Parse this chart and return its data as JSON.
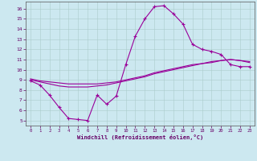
{
  "xlabel": "Windchill (Refroidissement éolien,°C)",
  "background_color": "#cce8f0",
  "grid_color": "#aacccc",
  "line_color": "#990099",
  "xlim": [
    -0.5,
    23.5
  ],
  "ylim": [
    4.5,
    16.7
  ],
  "xticks": [
    0,
    1,
    2,
    3,
    4,
    5,
    6,
    7,
    8,
    9,
    10,
    11,
    12,
    13,
    14,
    15,
    16,
    17,
    18,
    19,
    20,
    21,
    22,
    23
  ],
  "yticks": [
    5,
    6,
    7,
    8,
    9,
    10,
    11,
    12,
    13,
    14,
    15,
    16
  ],
  "line1_x": [
    0,
    1,
    2,
    3,
    4,
    5,
    6,
    7,
    8,
    9,
    10,
    11,
    12,
    13,
    14,
    15,
    16,
    17,
    18,
    19,
    20,
    21,
    22,
    23
  ],
  "line1_y": [
    8.9,
    8.5,
    7.5,
    6.3,
    5.2,
    5.1,
    5.0,
    7.5,
    6.6,
    7.4,
    10.5,
    13.3,
    15.0,
    16.2,
    16.3,
    15.5,
    14.5,
    12.5,
    12.0,
    11.8,
    11.5,
    10.5,
    10.3,
    10.3
  ],
  "line2_x": [
    0,
    1,
    2,
    3,
    4,
    5,
    6,
    7,
    8,
    9,
    10,
    11,
    12,
    13,
    14,
    15,
    16,
    17,
    18,
    19,
    20,
    21,
    22,
    23
  ],
  "line2_y": [
    9.0,
    8.8,
    8.6,
    8.4,
    8.3,
    8.3,
    8.3,
    8.4,
    8.5,
    8.7,
    8.9,
    9.1,
    9.3,
    9.6,
    9.8,
    10.0,
    10.2,
    10.4,
    10.6,
    10.7,
    10.9,
    11.0,
    10.9,
    10.7
  ],
  "line3_x": [
    0,
    1,
    2,
    3,
    4,
    5,
    6,
    7,
    8,
    9,
    10,
    11,
    12,
    13,
    14,
    15,
    16,
    17,
    18,
    19,
    20,
    21,
    22,
    23
  ],
  "line3_y": [
    9.1,
    8.9,
    8.8,
    8.7,
    8.6,
    8.6,
    8.6,
    8.6,
    8.7,
    8.8,
    9.0,
    9.2,
    9.4,
    9.7,
    9.9,
    10.1,
    10.3,
    10.5,
    10.6,
    10.8,
    10.9,
    11.0,
    10.9,
    10.8
  ]
}
